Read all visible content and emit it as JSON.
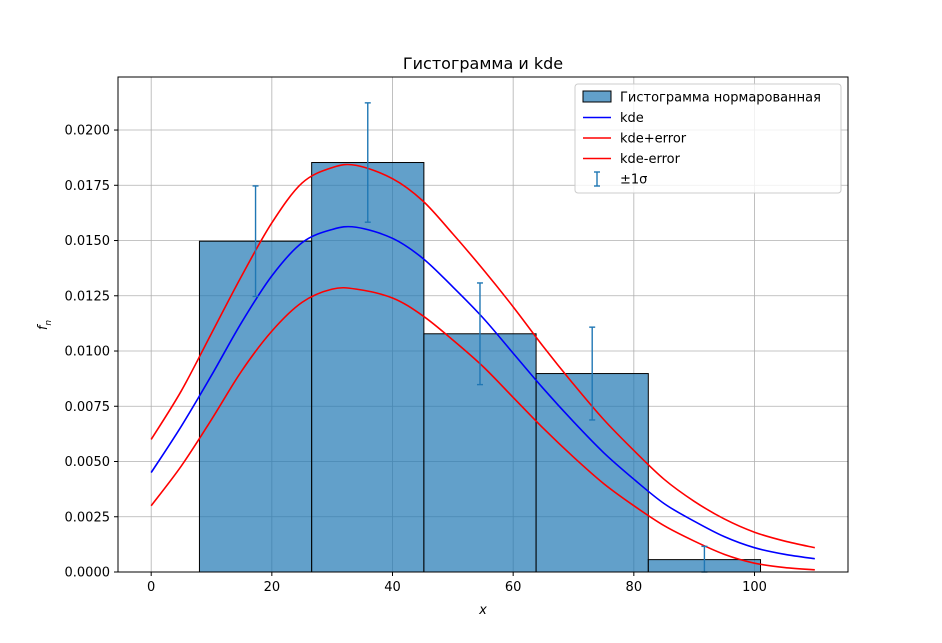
{
  "chart_data": {
    "type": "bar",
    "title": "Гистограмма и kde",
    "xlabel": "x",
    "ylabel": "f_n",
    "xlim": [
      -5.5,
      115.5
    ],
    "ylim": [
      0,
      0.0224
    ],
    "xticks": [
      0,
      20,
      40,
      60,
      80,
      100
    ],
    "xtick_labels": [
      "0",
      "20",
      "40",
      "60",
      "80",
      "100"
    ],
    "yticks": [
      0,
      0.0025,
      0.005,
      0.0075,
      0.01,
      0.0125,
      0.015,
      0.0175,
      0.02
    ],
    "ytick_labels": [
      "0.0000",
      "0.0025",
      "0.0050",
      "0.0075",
      "0.0100",
      "0.0125",
      "0.0150",
      "0.0175",
      "0.0200"
    ],
    "grid": true,
    "legend_position": "top-right",
    "colors": {
      "bar_fill": "#1f77b4",
      "bar_edge": "#000000",
      "kde": "#0000ff",
      "kde_bounds": "#ff0000",
      "errorbar": "#1f77b4"
    },
    "histogram": {
      "name": "Гистограмма нормарованная",
      "bin_edges": [
        8,
        26.6,
        45.2,
        63.8,
        82.4,
        101
      ],
      "values": [
        0.01497,
        0.01853,
        0.01078,
        0.00898,
        0.00056
      ]
    },
    "errorbars": {
      "name": "±1σ",
      "x": [
        17.3,
        35.9,
        54.5,
        73.1,
        91.7
      ],
      "y": [
        0.01497,
        0.01853,
        0.01078,
        0.00898,
        0.00056
      ],
      "yerr": [
        0.0025,
        0.0027,
        0.0023,
        0.0021,
        0.0006
      ]
    },
    "kde": {
      "name": "kde",
      "x": [
        0,
        5,
        10,
        15,
        20,
        25,
        30,
        34,
        40,
        45,
        50,
        55,
        60,
        65,
        70,
        75,
        80,
        85,
        90,
        95,
        100,
        105,
        110
      ],
      "y": [
        0.0045,
        0.0066,
        0.0089,
        0.0113,
        0.0134,
        0.0149,
        0.0155,
        0.0156,
        0.0151,
        0.0142,
        0.0129,
        0.0115,
        0.0099,
        0.0083,
        0.0068,
        0.0054,
        0.0042,
        0.0031,
        0.0023,
        0.0016,
        0.0011,
        0.0008,
        0.0006
      ]
    },
    "kde_upper": {
      "name": "kde+error",
      "x": [
        0,
        5,
        10,
        15,
        20,
        25,
        30,
        34,
        40,
        45,
        50,
        55,
        60,
        65,
        70,
        75,
        80,
        85,
        90,
        95,
        100,
        105,
        110
      ],
      "y": [
        0.006,
        0.0082,
        0.0108,
        0.0134,
        0.0158,
        0.0176,
        0.0183,
        0.0184,
        0.0178,
        0.0168,
        0.0153,
        0.0137,
        0.012,
        0.0102,
        0.0085,
        0.0069,
        0.0055,
        0.0042,
        0.0032,
        0.0024,
        0.0018,
        0.0014,
        0.0011
      ]
    },
    "kde_lower": {
      "name": "kde-error",
      "x": [
        0,
        5,
        10,
        15,
        20,
        25,
        30,
        34,
        40,
        45,
        50,
        55,
        60,
        65,
        70,
        75,
        80,
        85,
        90,
        95,
        100,
        105,
        110
      ],
      "y": [
        0.003,
        0.0048,
        0.0069,
        0.0091,
        0.0109,
        0.0122,
        0.0128,
        0.0128,
        0.0124,
        0.0116,
        0.0105,
        0.0093,
        0.0079,
        0.0065,
        0.0052,
        0.004,
        0.003,
        0.0021,
        0.0014,
        0.0008,
        0.0004,
        0.0002,
        0.0001
      ]
    }
  }
}
